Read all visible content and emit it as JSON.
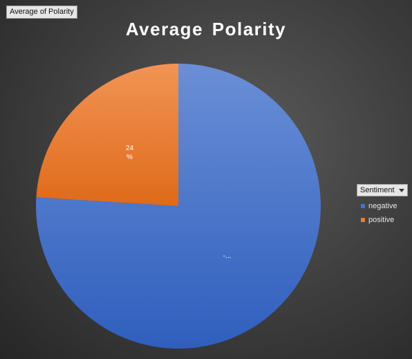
{
  "pivot": {
    "value_field_label": "Average of Polarity",
    "legend_field_label": "Sentiment"
  },
  "chart_data": {
    "type": "pie",
    "title": "Average Polarity",
    "categories": [
      "negative",
      "positive"
    ],
    "values": [
      76,
      24
    ],
    "unit": "%",
    "data_labels": [
      "-...",
      "24\n%"
    ],
    "colors": [
      "#4472c4",
      "#ed7d31"
    ],
    "legend_position": "right",
    "start_angle": "12 o'clock, clockwise"
  }
}
